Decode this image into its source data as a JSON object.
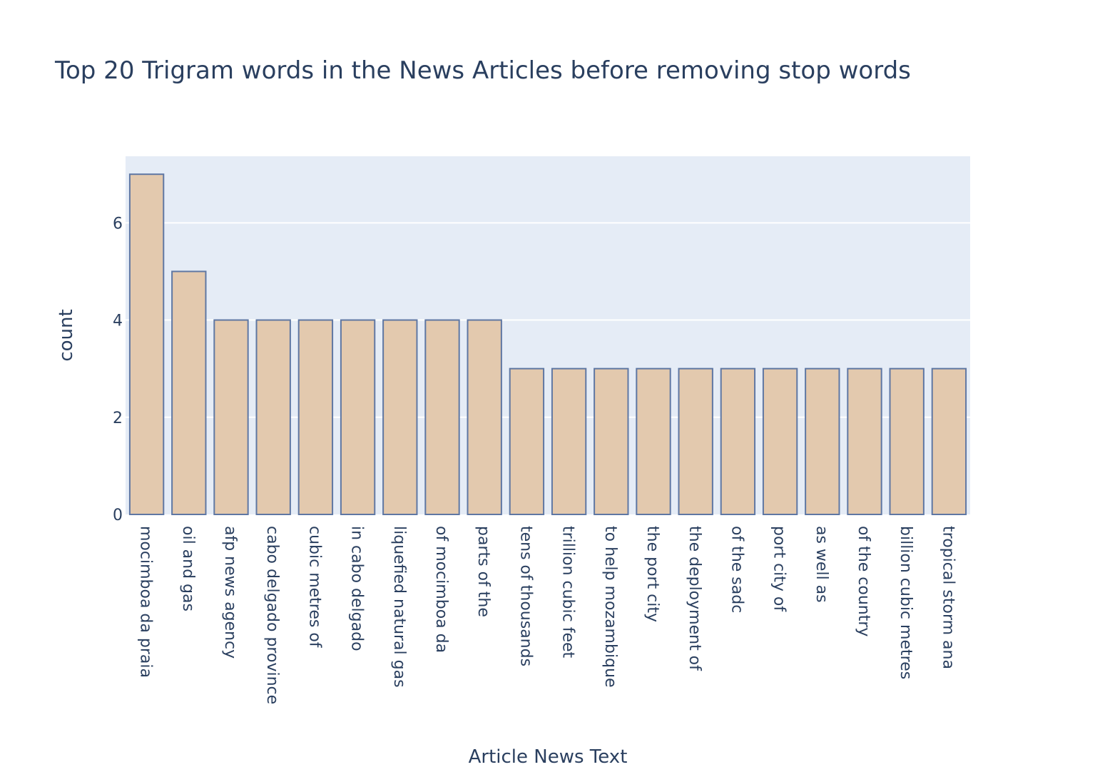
{
  "chart_data": {
    "type": "bar",
    "title": "Top 20 Trigram words in the News Articles before removing stop words",
    "xlabel": "Article News Text",
    "ylabel": "count",
    "categories": [
      "mocimboa da praia",
      "oil and gas",
      "afp news agency",
      "cabo delgado province",
      "cubic metres of",
      "in cabo delgado",
      "liquefied natural gas",
      "of mocimboa da",
      "parts of the",
      "tens of thousands",
      "trillion cubic feet",
      "to help mozambique",
      "the port city",
      "the deployment of",
      "of the sadc",
      "port city of",
      "as well as",
      "of the country",
      "billion cubic metres",
      "tropical storm ana"
    ],
    "values": [
      7,
      5,
      4,
      4,
      4,
      4,
      4,
      4,
      4,
      3,
      3,
      3,
      3,
      3,
      3,
      3,
      3,
      3,
      3,
      3
    ],
    "ylim": [
      0,
      7.37
    ],
    "yticks": [
      0,
      2,
      4,
      6
    ],
    "grid": true,
    "colors": {
      "bar_fill": "#e3c9ae",
      "bar_stroke": "#5f77a3",
      "plot_bg": "#e5ecf6",
      "grid": "#ffffff",
      "text": "#2a3f5f"
    }
  }
}
